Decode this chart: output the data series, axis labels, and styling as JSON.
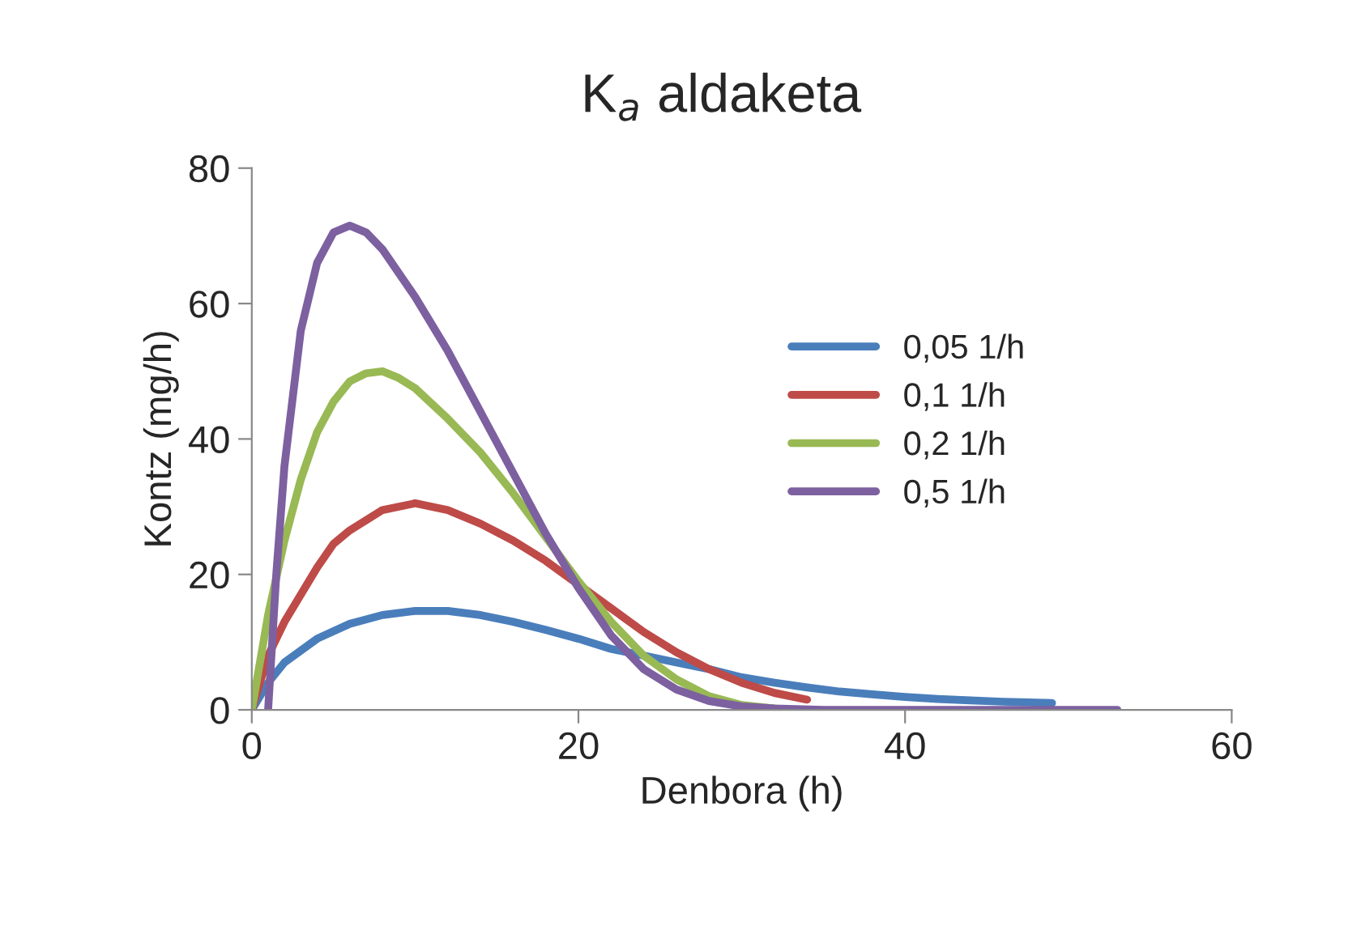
{
  "chart_data": {
    "type": "line",
    "title": "K$_{a}$ aldaketa",
    "xlabel": "Denbora (h)",
    "ylabel": "Kontz (mg/h)",
    "xlim": [
      0,
      60
    ],
    "xticks": [
      0,
      20,
      40,
      60
    ],
    "ylim": [
      0,
      80
    ],
    "yticks": [
      0,
      20,
      40,
      60,
      80
    ],
    "grid": false,
    "legend": "top right",
    "marker": "none",
    "line_style": "solid",
    "series": [
      {
        "name": "0,05 1/h",
        "color": "#4a7ebb",
        "x": [
          0,
          1,
          2,
          4,
          6,
          8,
          10,
          12,
          14,
          16,
          18,
          20,
          22,
          24,
          26,
          28,
          30,
          32,
          34,
          36,
          38,
          40,
          42,
          44,
          46,
          49
        ],
        "values": [
          0,
          4,
          7,
          10.5,
          12.7,
          14,
          14.6,
          14.6,
          14,
          13,
          11.8,
          10.5,
          9,
          8,
          7,
          6,
          4.8,
          4,
          3.3,
          2.7,
          2.3,
          1.9,
          1.6,
          1.4,
          1.2,
          1
        ]
      },
      {
        "name": "0,1 1/h",
        "color": "#be4b48",
        "x": [
          0,
          1,
          2,
          3,
          4,
          5,
          6,
          8,
          10,
          12,
          14,
          16,
          18,
          20,
          22,
          24,
          26,
          28,
          30,
          32,
          34
        ],
        "values": [
          0,
          8,
          13,
          17,
          21,
          24.5,
          26.5,
          29.5,
          30.5,
          29.5,
          27.5,
          25,
          22,
          18.5,
          15,
          11.5,
          8.5,
          6,
          4,
          2.5,
          1.5
        ]
      },
      {
        "name": "0,2 1/h",
        "color": "#98b954",
        "x": [
          0,
          1,
          2,
          3,
          4,
          5,
          6,
          7,
          8,
          9,
          10,
          12,
          14,
          16,
          18,
          20,
          22,
          24,
          26,
          28,
          30,
          32,
          33
        ],
        "values": [
          0,
          14,
          25,
          34,
          41,
          45.5,
          48.5,
          49.7,
          50,
          49,
          47.5,
          43,
          38,
          32,
          25.5,
          19,
          13,
          8,
          4.5,
          2,
          0.7,
          0.2,
          0
        ]
      },
      {
        "name": "0,5 1/h",
        "color": "#7d60a0",
        "x": [
          1,
          1.5,
          2,
          3,
          4,
          5,
          6,
          7,
          8,
          10,
          12,
          14,
          16,
          18,
          20,
          22,
          24,
          26,
          28,
          30,
          32,
          35,
          53
        ],
        "values": [
          0,
          20,
          36,
          56,
          66,
          70.5,
          71.5,
          70.5,
          68,
          61,
          53,
          44,
          35,
          26,
          18,
          11,
          6,
          3,
          1.3,
          0.5,
          0.2,
          0,
          0
        ]
      }
    ]
  }
}
